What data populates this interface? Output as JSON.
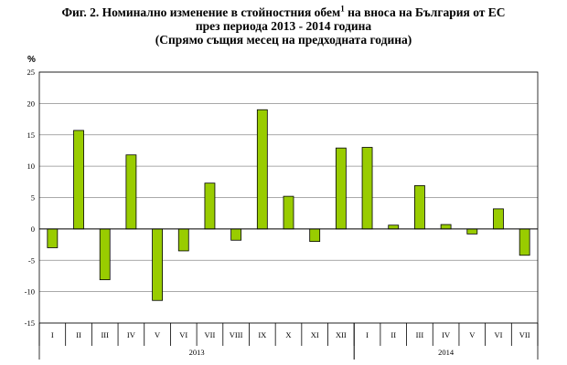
{
  "title": {
    "line1_prefix": "Фиг. 2. Номинално изменение в стойностния обем",
    "line1_sup": "1",
    "line1_suffix": " на вноса на България от ЕС",
    "line2": "през периода 2013 - 2014 година",
    "line3": "(Спрямо същия месец на предходната година)"
  },
  "chart_data": {
    "type": "bar",
    "ylabel": "%",
    "ylim": [
      -15,
      25
    ],
    "yticks": [
      25,
      20,
      15,
      10,
      5,
      0,
      -5,
      -10,
      -15
    ],
    "grid": true,
    "bar_color": "#99cc00",
    "categories": [
      "I",
      "II",
      "III",
      "IV",
      "V",
      "VI",
      "VII",
      "VIII",
      "IX",
      "X",
      "XI",
      "XII",
      "I",
      "II",
      "III",
      "IV",
      "V",
      "VI",
      "VII"
    ],
    "values": [
      -3.0,
      15.7,
      -8.1,
      11.8,
      -11.4,
      -3.5,
      7.3,
      -1.8,
      19.0,
      5.2,
      -2.0,
      12.9,
      13.0,
      0.6,
      6.9,
      0.7,
      -0.8,
      3.2,
      -4.2
    ],
    "year_groups": [
      {
        "label": "2013",
        "count": 12
      },
      {
        "label": "2014",
        "count": 7
      }
    ]
  }
}
